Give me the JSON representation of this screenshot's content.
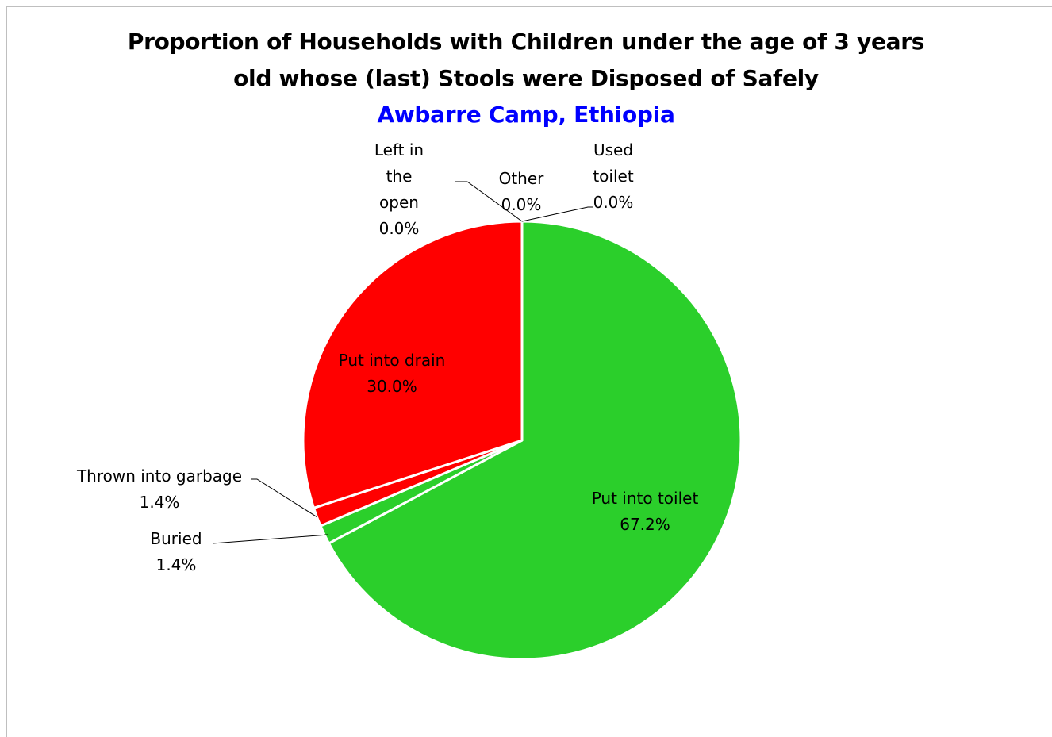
{
  "chart_data": {
    "type": "pie",
    "title_lines": [
      "Proportion of Households with Children under the age of 3 years",
      "old whose (last) Stools were Disposed of Safely"
    ],
    "subtitle": "Awbarre Camp, Ethiopia",
    "categories": [
      "Put into toilet",
      "Buried",
      "Thrown into garbage",
      "Put into drain",
      "Left in the open",
      "Other",
      "Used toilet"
    ],
    "values": [
      67.2,
      1.4,
      1.4,
      30.0,
      0.0,
      0.0,
      0.0
    ],
    "value_labels": [
      "67.2%",
      "1.4%",
      "1.4%",
      "30.0%",
      "0.0%",
      "0.0%",
      "0.0%"
    ],
    "label_lines": [
      [
        "Put into toilet",
        "67.2%"
      ],
      [
        "Buried",
        "1.4%"
      ],
      [
        "Thrown into garbage",
        "1.4%"
      ],
      [
        "Put into drain",
        "30.0%"
      ],
      [
        "Left in",
        "the",
        "open",
        "0.0%"
      ],
      [
        "Other",
        "0.0%"
      ],
      [
        "Used",
        "toilet",
        "0.0%"
      ]
    ],
    "colors": [
      "#2bcf2b",
      "#2bcf2b",
      "#ff0000",
      "#ff0000",
      "#ff0000",
      "#ff0000",
      "#2bcf2b"
    ],
    "start_angle_deg": 0,
    "direction": "clockwise"
  },
  "colors": {
    "safe": "#2bcf2b",
    "unsafe": "#ff0000",
    "subtitle": "#0000ff",
    "title": "#000000",
    "slice_border": "#ffffff"
  }
}
